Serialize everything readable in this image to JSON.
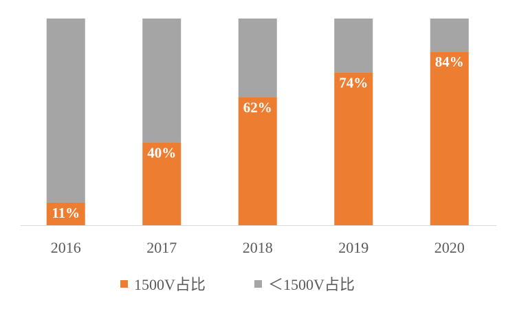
{
  "chart_data": {
    "type": "bar",
    "stacked": true,
    "percent_stacked": true,
    "title": "",
    "xlabel": "",
    "ylabel": "",
    "ylim": [
      0,
      100
    ],
    "grid": false,
    "legend_position": "bottom",
    "categories": [
      "2016",
      "2017",
      "2018",
      "2019",
      "2020"
    ],
    "series": [
      {
        "name": "1500V占比",
        "color": "#ED7D31",
        "values": [
          11,
          40,
          62,
          74,
          84
        ],
        "labels": [
          "11%",
          "40%",
          "62%",
          "74%",
          "84%"
        ]
      },
      {
        "name": "＜1500V占比",
        "color": "#A5A5A5",
        "values": [
          89,
          60,
          38,
          26,
          16
        ]
      }
    ]
  }
}
